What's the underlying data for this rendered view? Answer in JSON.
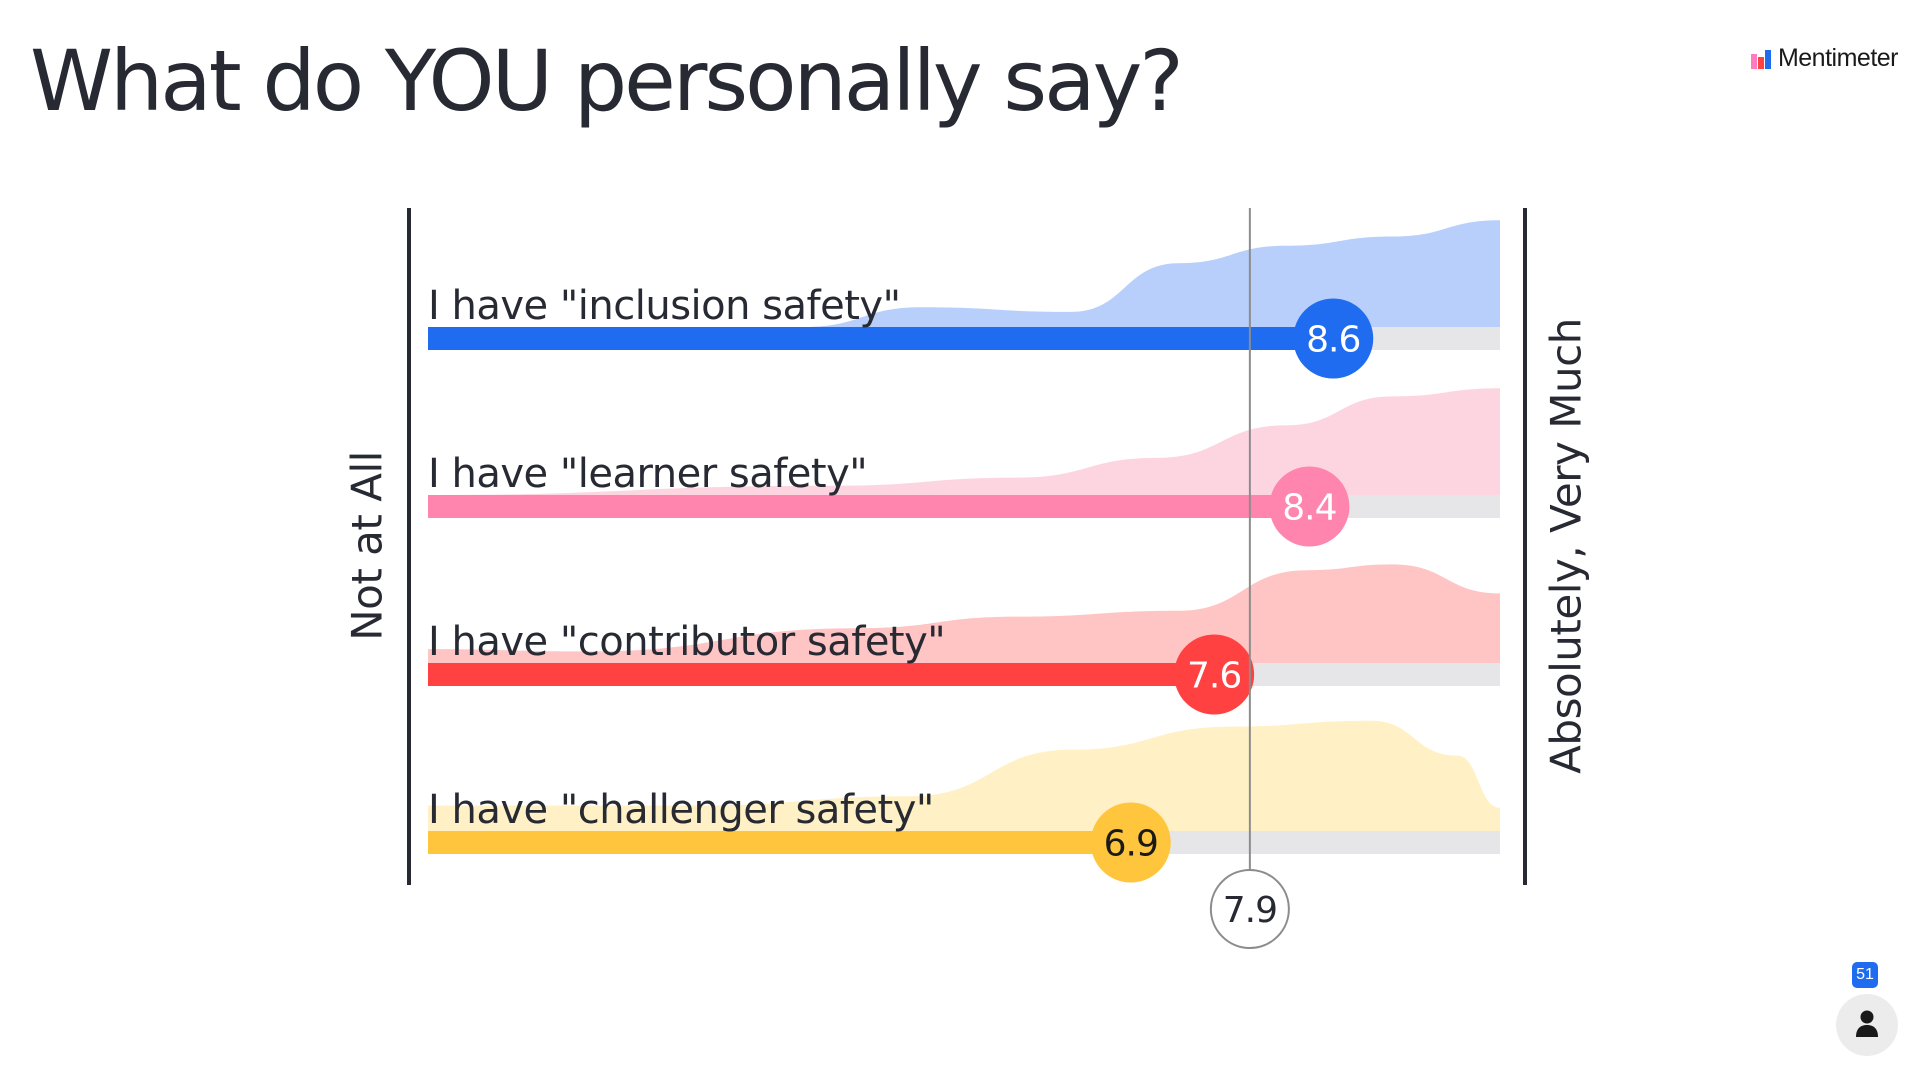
{
  "slide": {
    "title": "What do YOU personally say?",
    "brand": "Mentimeter",
    "participants_count": "51"
  },
  "chart_data": {
    "type": "bar",
    "xlim": [
      1,
      10
    ],
    "axis_min_label": "Not at All",
    "axis_max_label": "Absolutely, Very Much",
    "overall_average": 7.9,
    "overall_average_label": "7.9",
    "categories": [
      "I have \"inclusion safety\"",
      "I have \"learner safety\"",
      "I have \"contributor safety\"",
      "I have \"challenger safety\""
    ],
    "values": [
      8.6,
      8.4,
      7.6,
      6.9
    ],
    "value_labels": [
      "8.6",
      "8.4",
      "7.6",
      "6.9"
    ],
    "colors": [
      "#1f6cf1",
      "#ff85ae",
      "#ff4141",
      "#ffc53d"
    ],
    "distribution_colors": [
      "#b7cffa",
      "#fdd5e1",
      "#ffc5c5",
      "#fff0c5"
    ],
    "distribution_shape": [
      [
        [
          0,
          0
        ],
        [
          0.35,
          0
        ],
        [
          0.46,
          0.17
        ],
        [
          0.6,
          0.13
        ],
        [
          0.7,
          0.55
        ],
        [
          0.8,
          0.7
        ],
        [
          0.9,
          0.78
        ],
        [
          1.0,
          0.92
        ]
      ],
      [
        [
          0,
          0
        ],
        [
          0.38,
          0.08
        ],
        [
          0.55,
          0.15
        ],
        [
          0.68,
          0.32
        ],
        [
          0.8,
          0.6
        ],
        [
          0.9,
          0.85
        ],
        [
          1.0,
          0.92
        ]
      ],
      [
        [
          0,
          0.12
        ],
        [
          0.15,
          0.1
        ],
        [
          0.4,
          0.3
        ],
        [
          0.55,
          0.4
        ],
        [
          0.7,
          0.45
        ],
        [
          0.82,
          0.8
        ],
        [
          0.9,
          0.85
        ],
        [
          1.0,
          0.6
        ]
      ],
      [
        [
          0,
          0.22
        ],
        [
          0.25,
          0.22
        ],
        [
          0.45,
          0.3
        ],
        [
          0.6,
          0.7
        ],
        [
          0.75,
          0.9
        ],
        [
          0.88,
          0.95
        ],
        [
          0.96,
          0.65
        ],
        [
          1.0,
          0.2
        ]
      ]
    ],
    "grid": false,
    "legend": "none"
  }
}
